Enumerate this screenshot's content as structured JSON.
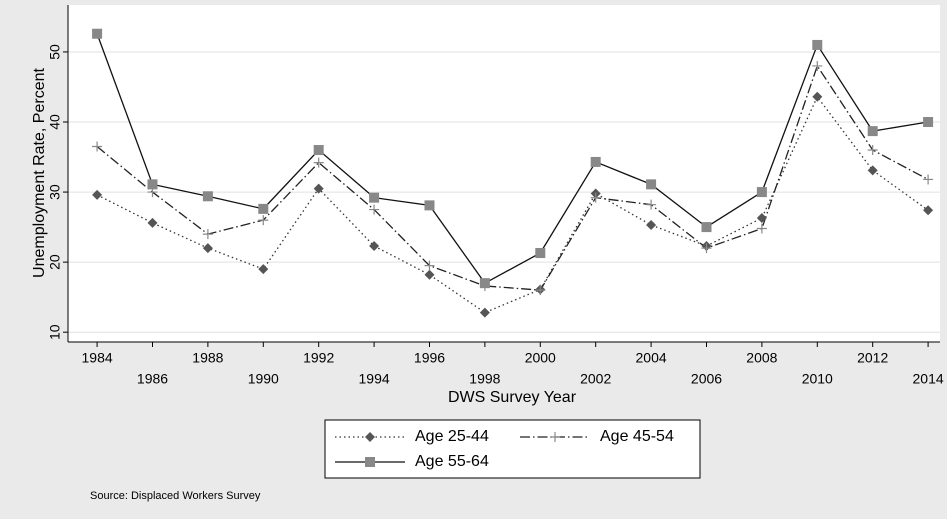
{
  "chart_data": {
    "type": "line",
    "x_label": "DWS Survey Year",
    "y_label": "Unemployment Rate, Percent",
    "source": "Source: Displaced Workers Survey",
    "x": [
      1984,
      1986,
      1988,
      1990,
      1992,
      1994,
      1996,
      1998,
      2000,
      2002,
      2004,
      2006,
      2008,
      2010,
      2012,
      2014
    ],
    "xlim": [
      1982.95,
      2014.43
    ],
    "xticks": [
      1984,
      1986,
      1988,
      1990,
      1992,
      1994,
      1996,
      1998,
      2000,
      2002,
      2004,
      2006,
      2008,
      2010,
      2012,
      2014
    ],
    "ylim": [
      8.6,
      56.7
    ],
    "yticks": [
      10,
      20,
      30,
      40,
      50
    ],
    "grid": true,
    "series": [
      {
        "name": "Age 25-44",
        "color": "#333333",
        "dash": "1.5 3",
        "marker": "diamond",
        "values": [
          29.6,
          25.6,
          22,
          19,
          30.5,
          22.3,
          18.2,
          12.8,
          16.1,
          29.8,
          25.3,
          22.3,
          26.3,
          43.6,
          33.1,
          27.4
        ]
      },
      {
        "name": "Age 45-54",
        "color": "#222222",
        "dash": "10 3 1.5 3",
        "marker": "plus",
        "values": [
          36.5,
          30,
          24,
          26,
          34.2,
          27.5,
          19.5,
          16.6,
          16,
          29.2,
          28.2,
          22,
          24.8,
          48,
          36,
          31.8
        ]
      },
      {
        "name": "Age 55-64",
        "color": "#111111",
        "dash": "",
        "marker": "square",
        "values": [
          52.6,
          31.1,
          29.4,
          27.6,
          36,
          29.2,
          28.1,
          17,
          21.3,
          34.3,
          31.1,
          25,
          30,
          51,
          38.7,
          40
        ]
      }
    ]
  }
}
